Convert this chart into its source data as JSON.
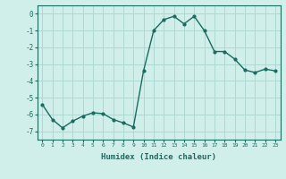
{
  "x": [
    0,
    1,
    2,
    3,
    4,
    5,
    6,
    7,
    8,
    9,
    10,
    11,
    12,
    13,
    14,
    15,
    16,
    17,
    18,
    19,
    20,
    21,
    22,
    23
  ],
  "y": [
    -5.4,
    -6.3,
    -6.8,
    -6.4,
    -6.1,
    -5.9,
    -5.95,
    -6.3,
    -6.5,
    -6.75,
    -3.4,
    -1.0,
    -0.35,
    -0.15,
    -0.6,
    -0.15,
    -1.0,
    -2.25,
    -2.25,
    -2.7,
    -3.35,
    -3.5,
    -3.3,
    -3.4
  ],
  "xlabel": "Humidex (Indice chaleur)",
  "ylim": [
    -7.5,
    0.5
  ],
  "xlim": [
    -0.5,
    23.5
  ],
  "bg_color": "#d0eeea",
  "line_color": "#1a6b60",
  "marker_color": "#1a6b60",
  "grid_color": "#b0d8d2",
  "tick_color": "#1a6b60",
  "label_color": "#1a6b60",
  "yticks": [
    0,
    -1,
    -2,
    -3,
    -4,
    -5,
    -6,
    -7
  ],
  "xticks": [
    0,
    1,
    2,
    3,
    4,
    5,
    6,
    7,
    8,
    9,
    10,
    11,
    12,
    13,
    14,
    15,
    16,
    17,
    18,
    19,
    20,
    21,
    22,
    23
  ],
  "xtick_labels": [
    "0",
    "1",
    "2",
    "3",
    "4",
    "5",
    "6",
    "7",
    "8",
    "9",
    "10",
    "11",
    "12",
    "13",
    "14",
    "15",
    "16",
    "17",
    "18",
    "19",
    "20",
    "21",
    "22",
    "23"
  ]
}
